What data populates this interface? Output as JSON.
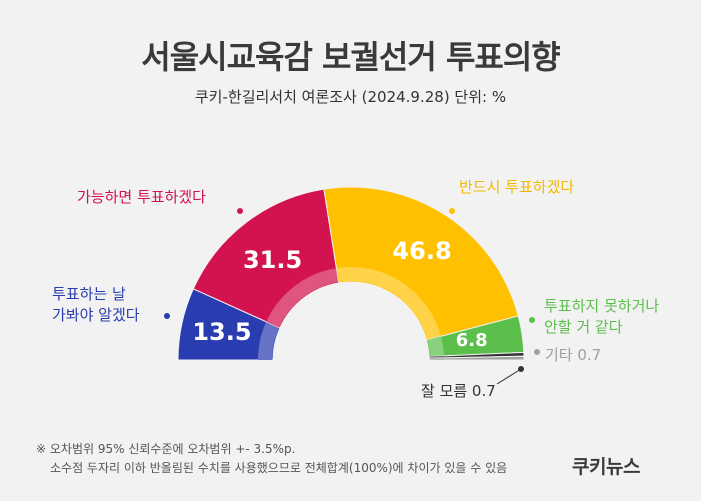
{
  "header": {
    "title": "서울시교육감 보궐선거 투표의향",
    "subtitle": "쿠키-한길리서치 여론조사 (2024.9.28) 단위: %"
  },
  "chart_data": {
    "type": "pie",
    "subtype": "semi-donut",
    "title": "서울시교육감 보궐선거 투표의향",
    "subtitle": "쿠키-한길리서치 여론조사 (2024.9.28) 단위: %",
    "unit": "%",
    "slices": [
      {
        "label": "투표하는 날 가봐야 알겠다",
        "label_lines": [
          "투표하는 날",
          "가봐야 알겠다"
        ],
        "value": 13.5,
        "value_label": "13.5",
        "color": "#2a3db0"
      },
      {
        "label": "가능하면 투표하겠다",
        "label_lines": [
          "가능하면 투표하겠다"
        ],
        "value": 31.5,
        "value_label": "31.5",
        "color": "#d3134f"
      },
      {
        "label": "반드시 투표하겠다",
        "label_lines": [
          "반드시 투표하겠다"
        ],
        "value": 46.8,
        "value_label": "46.8",
        "color": "#ffc000"
      },
      {
        "label": "투표하지 못하거나 안할 거 같다",
        "label_lines": [
          "투표하지 못하거나",
          "안할 거 같다"
        ],
        "value": 6.8,
        "value_label": "6.8",
        "color": "#5cbf4c"
      },
      {
        "label": "잘 모름",
        "label_lines": [
          "잘 모름 0.7"
        ],
        "value": 0.7,
        "value_label": "",
        "color": "#333333"
      },
      {
        "label": "기타",
        "label_lines": [
          "기타 0.7"
        ],
        "value": 0.7,
        "value_label": "",
        "color": "#a0a0a0"
      }
    ]
  },
  "footer": {
    "note_1": "※ 오차범위 95% 신뢰수준에 오차범위 +- 3.5%p.",
    "note_2": "소수점 두자리 이하 반올림된 수치를 사용했으므로 전체합계(100%)에 차이가 있을 수 있음",
    "brand": "쿠키뉴스"
  }
}
